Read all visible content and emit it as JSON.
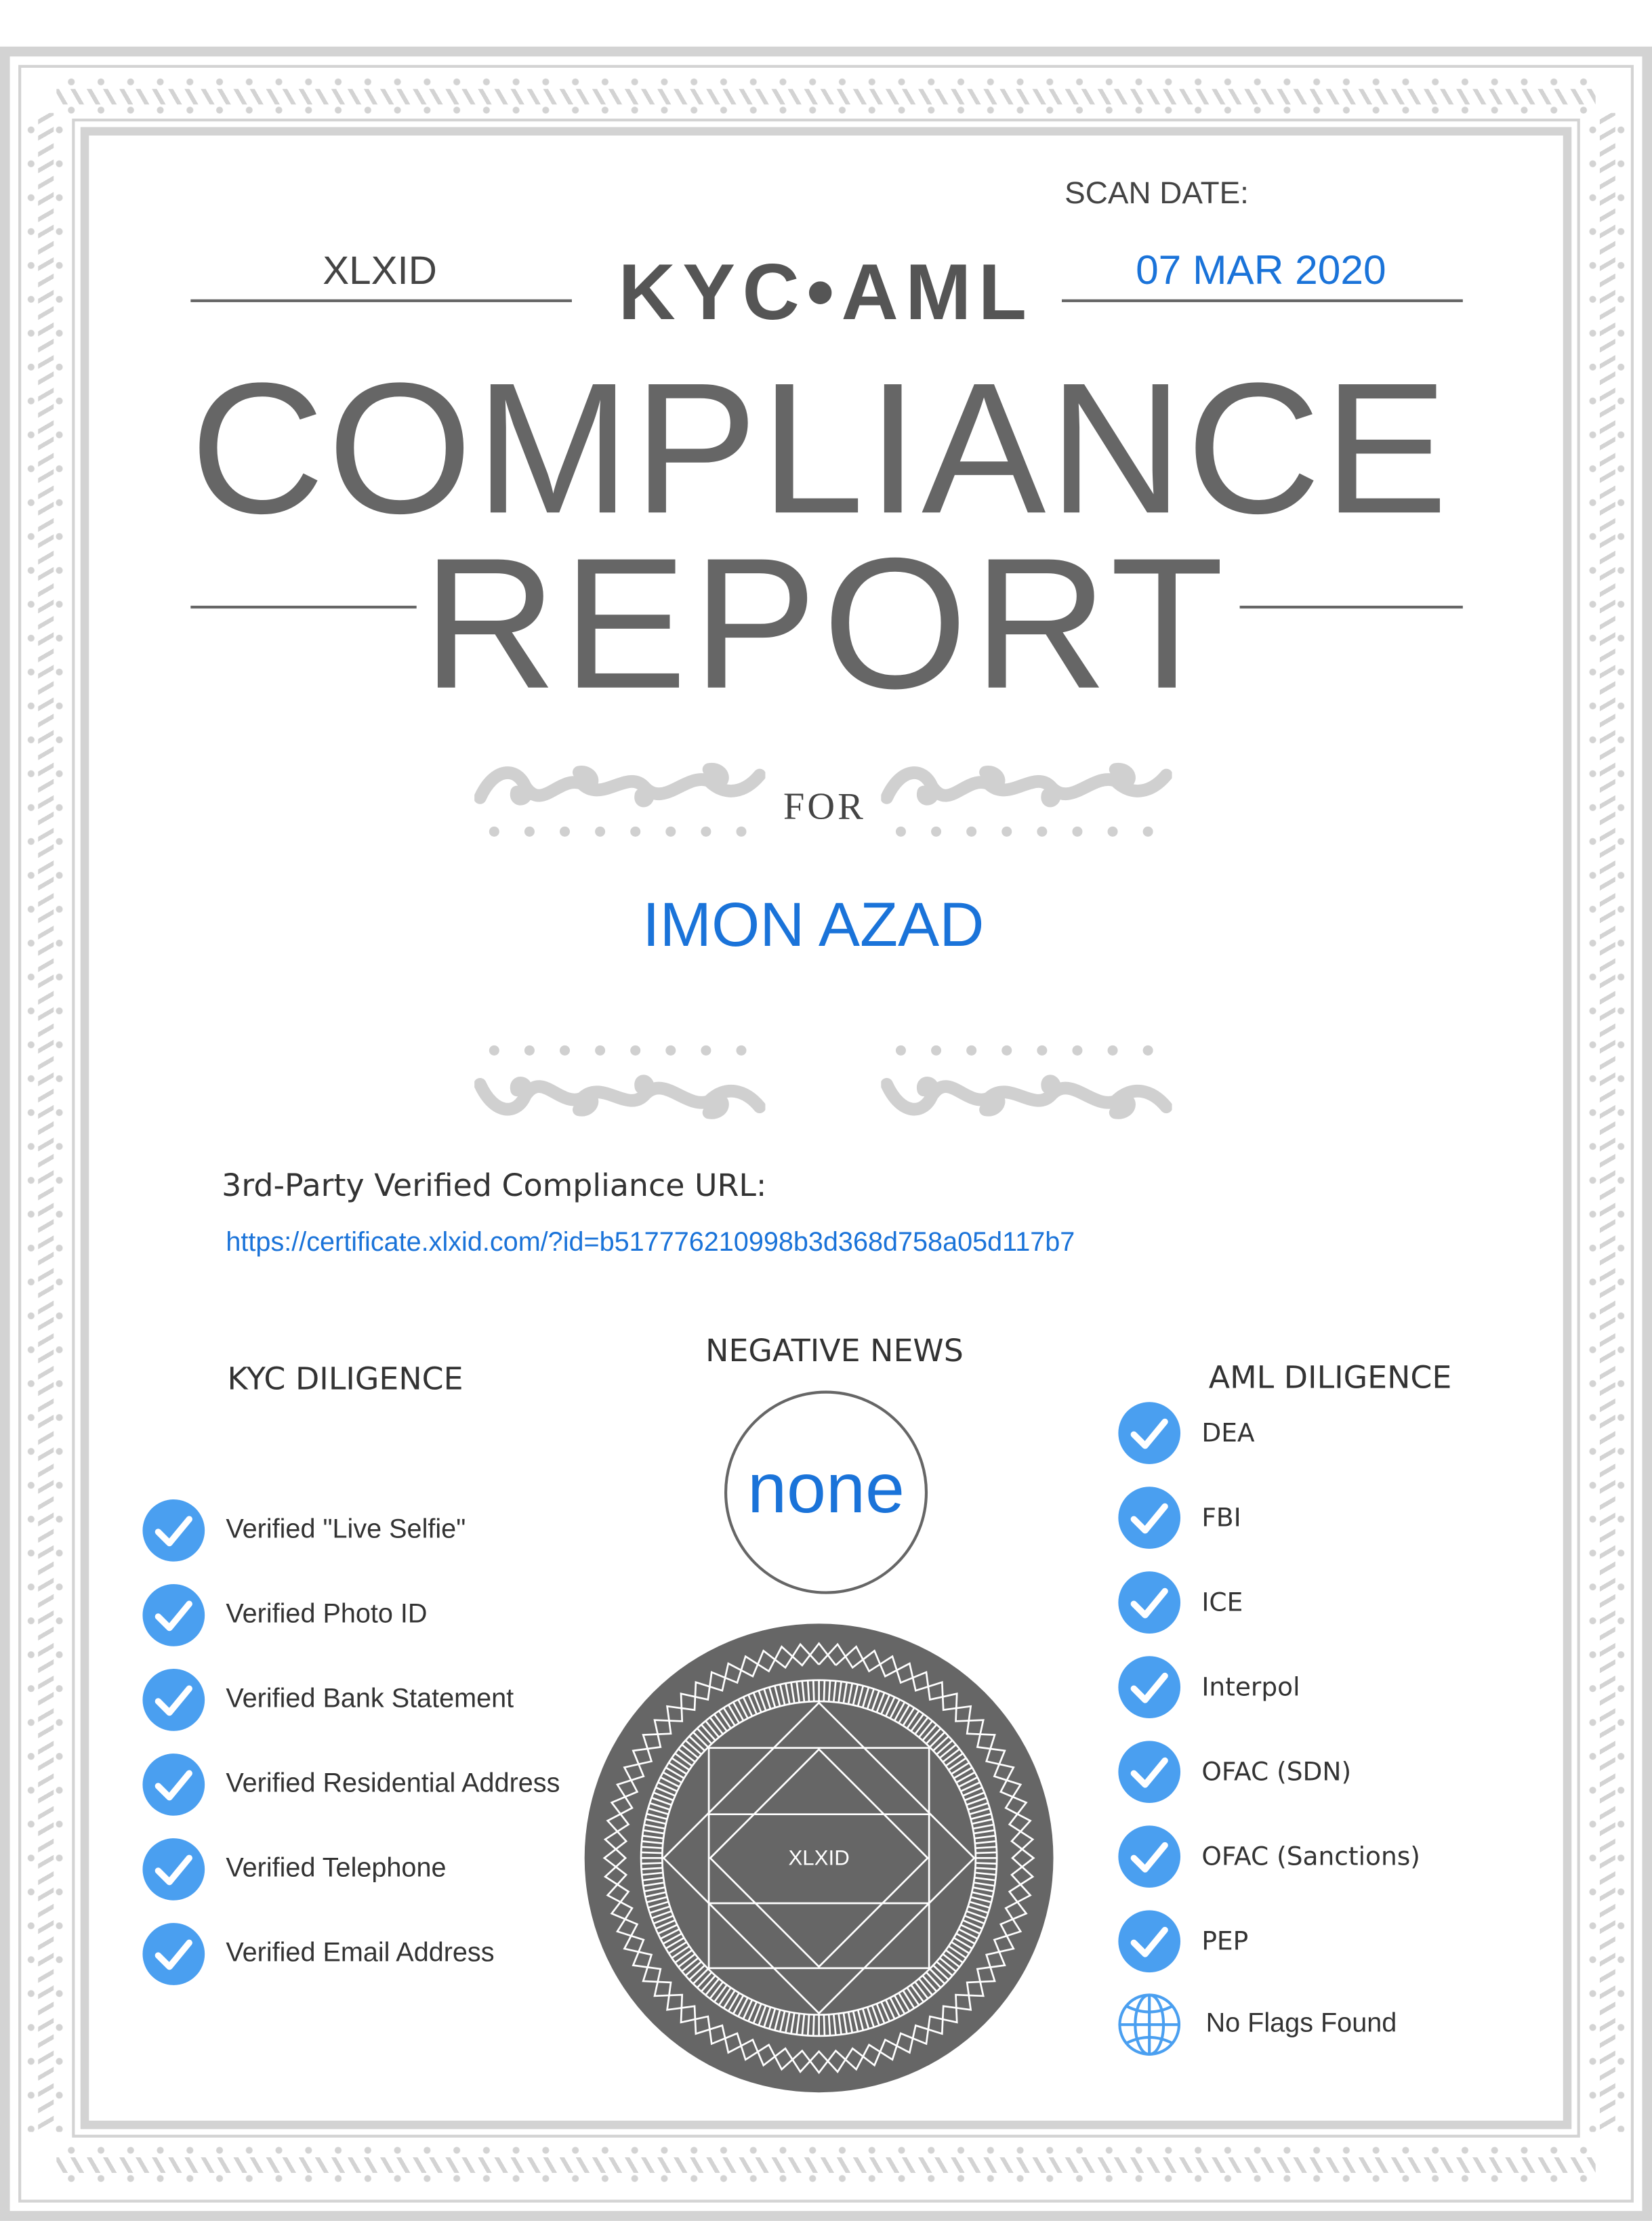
{
  "header": {
    "scan_date_label": "SCAN DATE:",
    "issuer": "XLXID",
    "brand": "KYC•AML",
    "scan_date": "07 MAR 2020"
  },
  "title": {
    "line1": "COMPLIANCE",
    "line2": "REPORT"
  },
  "for_label": "FOR",
  "subject_name": "IMON AZAD",
  "verification": {
    "url_label": "3rd-Party Verified Compliance URL:",
    "url": "https://certificate.xlxid.com/?id=b517776210998b3d368d758a05d117b7"
  },
  "kyc": {
    "heading": "KYC DILIGENCE",
    "items": [
      {
        "label": "Verified \"Live Selfie\"",
        "icon": "check-circle-icon"
      },
      {
        "label": "Verified Photo ID",
        "icon": "check-circle-icon"
      },
      {
        "label": "Verified Bank Statement",
        "icon": "check-circle-icon"
      },
      {
        "label": "Verified Residential Address",
        "icon": "check-circle-icon"
      },
      {
        "label": "Verified Telephone",
        "icon": "check-circle-icon"
      },
      {
        "label": "Verified Email Address",
        "icon": "check-circle-icon"
      }
    ]
  },
  "negative_news": {
    "heading": "NEGATIVE NEWS",
    "value": "none"
  },
  "aml": {
    "heading": "AML DILIGENCE",
    "items": [
      {
        "label": "DEA",
        "icon": "check-circle-icon"
      },
      {
        "label": "FBI",
        "icon": "check-circle-icon"
      },
      {
        "label": "ICE",
        "icon": "check-circle-icon"
      },
      {
        "label": "Interpol",
        "icon": "check-circle-icon"
      },
      {
        "label": "OFAC (SDN)",
        "icon": "check-circle-icon"
      },
      {
        "label": "OFAC (Sanctions)",
        "icon": "check-circle-icon"
      },
      {
        "label": "PEP",
        "icon": "check-circle-icon"
      }
    ],
    "result": {
      "label": "No Flags Found",
      "icon": "globe-icon"
    }
  },
  "seal": {
    "text": "XLXID"
  },
  "colors": {
    "accent_blue": "#1a73d9",
    "check_blue": "#4a9ff0",
    "text_gray": "#666666",
    "border_gray": "#d3d3d3",
    "seal_gray": "#666666"
  }
}
